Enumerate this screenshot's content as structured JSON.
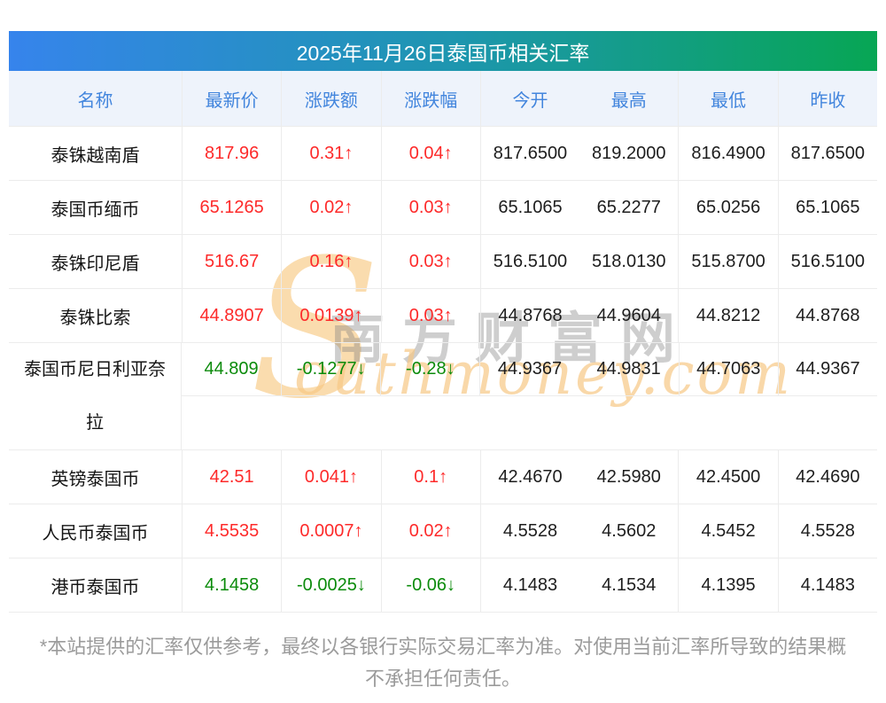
{
  "title": "2025年11月26日泰国币相关汇率",
  "table": {
    "columns": [
      "名称",
      "最新价",
      "涨跌额",
      "涨跌幅",
      "今开",
      "最高",
      "最低",
      "昨收"
    ],
    "rows": [
      {
        "name": "泰铢越南盾",
        "latest": "817.96",
        "change": "0.31↑",
        "percent": "0.04↑",
        "trend": "up",
        "open": "817.6500",
        "high": "819.2000",
        "low": "816.4900",
        "prev": "817.6500",
        "tall": false
      },
      {
        "name": "泰国币缅币",
        "latest": "65.1265",
        "change": "0.02↑",
        "percent": "0.03↑",
        "trend": "up",
        "open": "65.1065",
        "high": "65.2277",
        "low": "65.0256",
        "prev": "65.1065",
        "tall": false
      },
      {
        "name": "泰铢印尼盾",
        "latest": "516.67",
        "change": "0.16↑",
        "percent": "0.03↑",
        "trend": "up",
        "open": "516.5100",
        "high": "518.0130",
        "low": "515.8700",
        "prev": "516.5100",
        "tall": false
      },
      {
        "name": "泰铢比索",
        "latest": "44.8907",
        "change": "0.0139↑",
        "percent": "0.03↑",
        "trend": "up",
        "open": "44.8768",
        "high": "44.9604",
        "low": "44.8212",
        "prev": "44.8768",
        "tall": false
      },
      {
        "name": "泰国币尼日利亚奈拉",
        "latest": "44.809",
        "change": "-0.1277↓",
        "percent": "-0.28↓",
        "trend": "down",
        "open": "44.9367",
        "high": "44.9831",
        "low": "44.7063",
        "prev": "44.9367",
        "tall": true
      },
      {
        "name": "英镑泰国币",
        "latest": "42.51",
        "change": "0.041↑",
        "percent": "0.1↑",
        "trend": "up",
        "open": "42.4670",
        "high": "42.5980",
        "low": "42.4500",
        "prev": "42.4690",
        "tall": false
      },
      {
        "name": "人民币泰国币",
        "latest": "4.5535",
        "change": "0.0007↑",
        "percent": "0.02↑",
        "trend": "up",
        "open": "4.5528",
        "high": "4.5602",
        "low": "4.5452",
        "prev": "4.5528",
        "tall": false
      },
      {
        "name": "港币泰国币",
        "latest": "4.1458",
        "change": "-0.0025↓",
        "percent": "-0.06↓",
        "trend": "down",
        "open": "4.1483",
        "high": "4.1534",
        "low": "4.1395",
        "prev": "4.1483",
        "tall": false
      }
    ]
  },
  "watermark": {
    "initial": "S",
    "script": "outhmoney.com",
    "site_name": "南方财富网"
  },
  "footer": "*本站提供的汇率仅供参考，最终以各银行实际交易汇率为准。对使用当前汇率所导致的结果概不承担任何责任。",
  "colors": {
    "up": "#fd2a2a",
    "down": "#0b8b0b",
    "gradient_start": "#3684ec",
    "gradient_end": "#07a654",
    "header_text": "#4285dd",
    "header_bg": "#eef3fb",
    "border": "#ececec"
  }
}
